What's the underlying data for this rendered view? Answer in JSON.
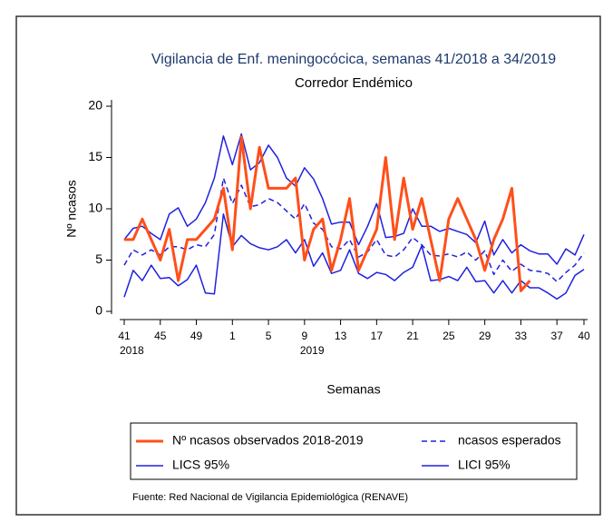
{
  "chart_data": {
    "type": "line",
    "title": "Vigilancia de Enf. meningocócica, semanas 41/2018 a 34/2019",
    "subtitle": "Corredor Endémico",
    "y_label": "Nº ncasos",
    "x_label": "Semanas",
    "source": "Fuente: Red Nacional de Vigilancia Epidemiológica (RENAVE)",
    "categories": [
      "41",
      null,
      null,
      null,
      "45",
      null,
      null,
      null,
      "49",
      null,
      null,
      null,
      "1",
      null,
      null,
      null,
      "5",
      null,
      null,
      null,
      "9",
      null,
      null,
      null,
      "13",
      null,
      null,
      null,
      "17",
      null,
      null,
      null,
      "21",
      null,
      null,
      null,
      "25",
      null,
      null,
      null,
      "29",
      null,
      null,
      null,
      "33",
      null,
      null,
      null,
      "37",
      null,
      null,
      "40"
    ],
    "category_sublabels": [
      "2018",
      null,
      null,
      null,
      null,
      null,
      null,
      null,
      null,
      null,
      null,
      null,
      null,
      null,
      null,
      null,
      null,
      null,
      null,
      null,
      "2019",
      null,
      null,
      null,
      null,
      null,
      null,
      null,
      null,
      null,
      null,
      null,
      null,
      null,
      null,
      null,
      null,
      null,
      null,
      null,
      null,
      null,
      null,
      null,
      null,
      null,
      null,
      null,
      null,
      null,
      null,
      null
    ],
    "ylim": [
      0,
      20
    ],
    "yticks": [
      0,
      5,
      10,
      15,
      20
    ],
    "legend": "bottom",
    "series": [
      {
        "name": "Nº ncasos observados 2018-2019",
        "color": "#ff4f1a",
        "line_width": 3,
        "dash": false,
        "values": [
          7,
          7,
          9,
          7,
          5,
          8,
          3,
          7,
          7,
          8,
          9,
          12,
          6,
          17,
          10,
          16,
          12,
          12,
          12,
          13,
          5,
          8,
          9,
          4,
          7,
          11,
          4,
          6,
          8,
          15,
          7,
          13,
          8,
          11,
          7,
          3,
          9,
          11,
          9,
          7,
          4,
          7,
          9,
          12,
          2,
          3,
          null,
          null,
          null,
          null,
          null,
          null
        ]
      },
      {
        "name": "ncasos esperados",
        "color": "#2020e0",
        "line_width": 1.5,
        "dash": true,
        "values": [
          4.5,
          6,
          5.5,
          6,
          5.5,
          6.3,
          6.3,
          6,
          6.5,
          6.3,
          7.5,
          13,
          10.5,
          12.3,
          10.2,
          10.4,
          11,
          10.6,
          9.8,
          9,
          10.5,
          8.6,
          8,
          6.3,
          6.1,
          7,
          5.3,
          5.8,
          7,
          5.5,
          5.3,
          6,
          7.2,
          6.5,
          5.5,
          5.4,
          5.6,
          5.3,
          5.8,
          5,
          5.9,
          3.6,
          5,
          3.9,
          4.6,
          4,
          3.9,
          3.7,
          2.9,
          3.8,
          4.5,
          5.7
        ]
      },
      {
        "name": "LICS 95%",
        "color": "#2020e0",
        "line_width": 1.5,
        "dash": false,
        "values": [
          7,
          8.1,
          8.3,
          7.6,
          7,
          9.5,
          10.1,
          8.3,
          9,
          10.6,
          13,
          17.1,
          14.3,
          17.3,
          13.8,
          14.5,
          16.2,
          15,
          13,
          12.2,
          14,
          12.9,
          11,
          8.5,
          8.7,
          8.7,
          6.5,
          8.3,
          10.5,
          7.2,
          7.3,
          7.6,
          10,
          8.3,
          8.3,
          7.8,
          8.1,
          7.8,
          7.5,
          6.7,
          8.8,
          5.5,
          7,
          5.7,
          6.5,
          5.9,
          5.6,
          5.6,
          4.6,
          6.1,
          5.5,
          7.5
        ]
      },
      {
        "name": "LICI 95%",
        "color": "#2020e0",
        "line_width": 1.5,
        "dash": false,
        "values": [
          1.4,
          4,
          3,
          4.5,
          3.2,
          3.3,
          2.5,
          3.1,
          4.5,
          1.8,
          1.7,
          9.5,
          6.3,
          7.4,
          6.6,
          6.2,
          6,
          6.3,
          7,
          5.7,
          7,
          4.4,
          5.7,
          3.7,
          4,
          6,
          3.7,
          3.2,
          3.8,
          3.6,
          3,
          3.8,
          4.3,
          6.4,
          3,
          3.1,
          3.4,
          3,
          4.3,
          2.9,
          3,
          1.8,
          3,
          1.8,
          3,
          2.3,
          2.3,
          1.8,
          1.2,
          1.8,
          3.5,
          4.1
        ]
      }
    ]
  }
}
